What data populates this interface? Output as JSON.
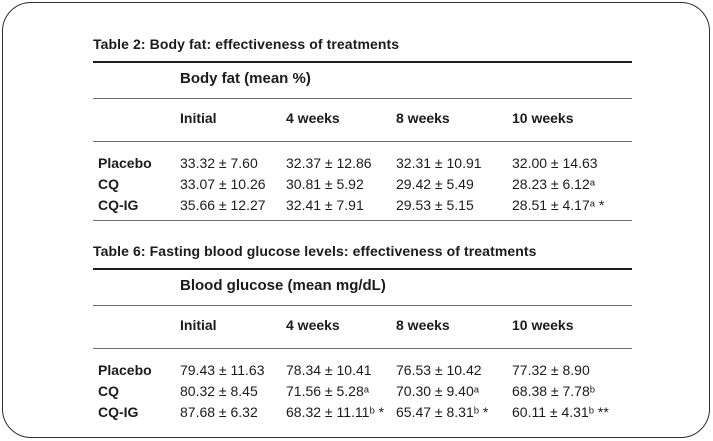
{
  "figure": {
    "border_color": "#2e2e2e",
    "rule_black": "#1c1c1c",
    "rule_gray": "#6e6e6e",
    "text_color": "#1b1b1b"
  },
  "tables": [
    {
      "title": "Table 2: Body fat: effectiveness of treatments",
      "group_header": "Body fat (mean %)",
      "columns": [
        "Initial",
        "4 weeks",
        "8 weeks",
        "10 weeks"
      ],
      "rows": [
        {
          "label": "Placebo",
          "values": [
            "33.32 ± 7.60",
            "32.37 ± 12.86",
            "32.31 ± 10.91",
            "32.00 ± 14.63"
          ]
        },
        {
          "label": "CQ",
          "values": [
            "33.07 ± 10.26",
            "30.81 ± 5.92",
            "29.42 ± 5.49",
            "28.23 ± 6.12ᵃ"
          ]
        },
        {
          "label": "CQ-IG",
          "values": [
            "35.66 ± 12.27",
            "32.41 ± 7.91",
            "29.53 ± 5.15",
            "28.51 ± 4.17ᵃ *"
          ]
        }
      ]
    },
    {
      "title": "Table 6: Fasting blood glucose levels: effectiveness of treatments",
      "group_header": "Blood glucose (mean mg/dL)",
      "columns": [
        "Initial",
        "4 weeks",
        "8 weeks",
        "10 weeks"
      ],
      "rows": [
        {
          "label": "Placebo",
          "values": [
            "79.43 ± 11.63",
            "78.34 ± 10.41",
            "76.53 ± 10.42",
            "77.32 ± 8.90"
          ]
        },
        {
          "label": "CQ",
          "values": [
            "80.32 ± 8.45",
            "71.56 ± 5.28ᵃ",
            "70.30 ± 9.40ᵃ",
            "68.38 ± 7.78ᵇ"
          ]
        },
        {
          "label": "CQ-IG",
          "values": [
            "87.68 ± 6.32",
            "68.32 ± 11.11ᵇ *",
            "65.47 ± 8.31ᵇ *",
            "60.11 ± 4.31ᵇ **"
          ]
        }
      ]
    }
  ]
}
